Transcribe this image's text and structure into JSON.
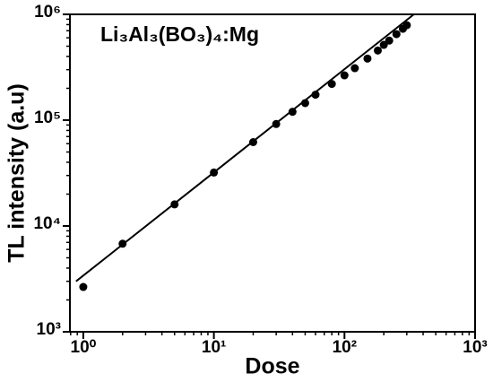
{
  "chart_data": {
    "type": "scatter",
    "title": "Li₃Al₃(BO₃)₄:Mg",
    "xlabel": "Dose",
    "ylabel": "TL intensity (a.u)",
    "x": [
      1,
      2,
      5,
      10,
      20,
      30,
      40,
      50,
      60,
      80,
      100,
      120,
      150,
      180,
      200,
      220,
      250,
      280,
      300
    ],
    "values": [
      2650,
      6800,
      16000,
      32000,
      62000,
      92000,
      120000,
      145000,
      174000,
      220000,
      265000,
      310000,
      382000,
      455000,
      515000,
      565000,
      650000,
      730000,
      790000
    ],
    "color": "#000000",
    "fit_line": {
      "x": [
        0.88,
        340
      ],
      "y": [
        3000,
        1000000
      ]
    },
    "xscale": "log",
    "yscale": "log",
    "xlim": [
      0.79,
      1000
    ],
    "ylim": [
      1000,
      1000000
    ],
    "xticks": [
      {
        "value": 1,
        "label": "10⁰"
      },
      {
        "value": 10,
        "label": "10¹"
      },
      {
        "value": 100,
        "label": "10²"
      },
      {
        "value": 1000,
        "label": "10³"
      }
    ],
    "yticks": [
      {
        "value": 1000,
        "label": "10³"
      },
      {
        "value": 10000,
        "label": "10⁴"
      },
      {
        "value": 100000,
        "label": "10⁵"
      },
      {
        "value": 1000000,
        "label": "10⁶"
      }
    ]
  }
}
